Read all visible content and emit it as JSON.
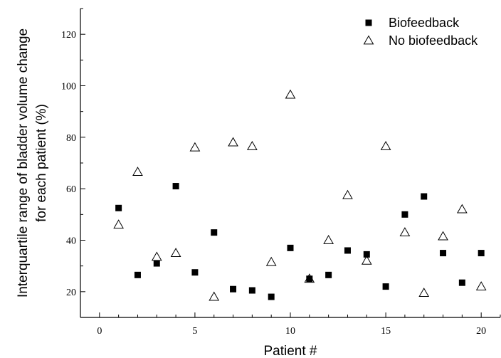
{
  "chart_data": {
    "type": "scatter",
    "title": "",
    "xlabel": "Patient #",
    "ylabel_line1": "Interquartile range of bladder volume change",
    "ylabel_line2": "for each patient (%)",
    "xlim": [
      -1,
      21
    ],
    "ylim": [
      10,
      130
    ],
    "x_ticks": [
      0,
      5,
      10,
      15,
      20
    ],
    "y_ticks": [
      20,
      40,
      60,
      80,
      100,
      120
    ],
    "grid": false,
    "legend_position": "top-right",
    "series": [
      {
        "name": "Biofeedback",
        "marker": "filled-square",
        "color": "#000000",
        "x": [
          1,
          2,
          3,
          4,
          5,
          6,
          7,
          8,
          9,
          10,
          11,
          12,
          13,
          14,
          15,
          16,
          17,
          18,
          19,
          20
        ],
        "y": [
          52.5,
          26.5,
          31,
          61,
          27.5,
          43,
          21,
          20.5,
          18,
          37,
          25,
          26.5,
          36,
          34.5,
          22,
          50,
          57,
          35,
          23.5,
          35
        ]
      },
      {
        "name": "No biofeedback",
        "marker": "open-triangle",
        "color": "#000000",
        "x": [
          1,
          2,
          3,
          4,
          5,
          6,
          7,
          8,
          9,
          10,
          11,
          12,
          13,
          14,
          15,
          16,
          17,
          18,
          19,
          20
        ],
        "y": [
          46,
          66.5,
          33.5,
          35,
          76,
          18,
          78,
          76.5,
          31.5,
          96.5,
          25,
          40,
          57.5,
          32,
          76.5,
          43,
          19.5,
          41.5,
          52,
          22
        ]
      }
    ]
  }
}
